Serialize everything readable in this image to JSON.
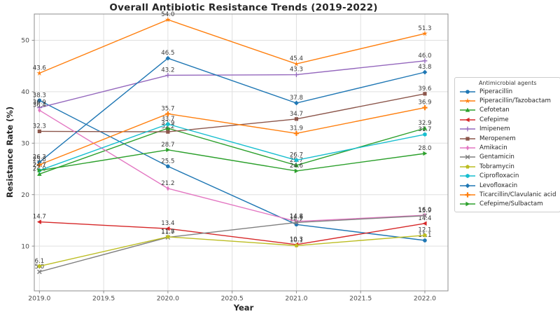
{
  "chart_data": {
    "type": "line",
    "title": "Overall Antibiotic Resistance Trends (2019-2022)",
    "xlabel": "Year",
    "ylabel": "Resistance Rate (%)",
    "legend_title": "Antimicrobial agents",
    "legend_position": "right-outside",
    "grid": true,
    "x": [
      2019,
      2020,
      2021,
      2022
    ],
    "xtick_labels": [
      "2019.0",
      "2019.5",
      "2020.0",
      "2020.5",
      "2021.0",
      "2021.5",
      "2022.0"
    ],
    "xticks": [
      2019,
      2019.5,
      2020,
      2020.5,
      2021,
      2021.5,
      2022
    ],
    "yticks": [
      10,
      20,
      30,
      40,
      50
    ],
    "xlim": [
      2018.96,
      2022.18
    ],
    "ylim": [
      1.3,
      55.1
    ],
    "label_color": "#3a3a3a",
    "tick_color": "#4a4a4a",
    "grid_color": "#e0e0e0",
    "spine_color": "#8c8c8c",
    "series": [
      {
        "name": "Piperacillin",
        "color": "#1f77b4",
        "marker": "o",
        "values": [
          38.3,
          25.5,
          14.2,
          11.1
        ]
      },
      {
        "name": "Piperacillin/Tazobactam",
        "color": "#ff7f0e",
        "marker": "*",
        "values": [
          43.6,
          54.0,
          45.4,
          51.3
        ]
      },
      {
        "name": "Cefotetan",
        "color": "#2ca02c",
        "marker": "^",
        "values": [
          24.0,
          32.9,
          25.7,
          32.9
        ]
      },
      {
        "name": "Cefepime",
        "color": "#d62728",
        "marker": "<",
        "values": [
          14.7,
          13.4,
          10.3,
          14.4
        ]
      },
      {
        "name": "Imipenem",
        "color": "#9467bd",
        "marker": "+",
        "values": [
          36.9,
          43.2,
          43.3,
          46.0
        ]
      },
      {
        "name": "Meropenem",
        "color": "#8c564b",
        "marker": "s",
        "values": [
          32.3,
          32.2,
          34.7,
          39.6
        ]
      },
      {
        "name": "Amikacin",
        "color": "#e377c2",
        "marker": "d",
        "values": [
          36.4,
          21.2,
          14.8,
          16.0
        ]
      },
      {
        "name": "Gentamicin",
        "color": "#7f7f7f",
        "marker": "x",
        "values": [
          5.0,
          11.7,
          14.6,
          15.9
        ]
      },
      {
        "name": "Tobramycin",
        "color": "#bcbd22",
        "marker": "p",
        "values": [
          6.1,
          11.8,
          10.1,
          12.1
        ]
      },
      {
        "name": "Ciprofloxacin",
        "color": "#17becf",
        "marker": "h",
        "values": [
          24.7,
          33.7,
          26.7,
          31.7
        ]
      },
      {
        "name": "Levofloxacin",
        "color": "#1f77b4",
        "marker": "D",
        "values": [
          26.3,
          46.5,
          37.8,
          43.8
        ]
      },
      {
        "name": "Ticarcillin/Clavulanic acid",
        "color": "#ff7f0e",
        "marker": "P",
        "values": [
          25.8,
          35.7,
          31.9,
          36.9
        ]
      },
      {
        "name": "Cefepime/Sulbactam",
        "color": "#2ca02c",
        "marker": ">",
        "values": [
          24.7,
          28.7,
          24.6,
          28.0
        ]
      }
    ]
  }
}
